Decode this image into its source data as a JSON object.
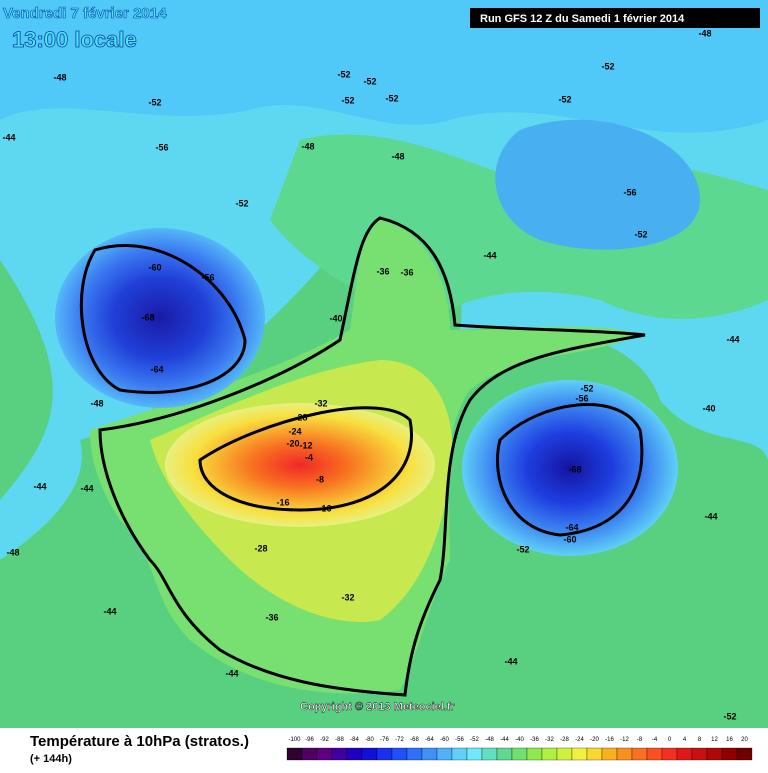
{
  "header": {
    "date": "Vendredi 7 février 2014",
    "time": "13:00 locale",
    "run": "Run GFS 12 Z du Samedi 1 février 2014"
  },
  "copyright": "Copyright © 2013 Meteociel.fr",
  "footer": {
    "title": "Température à 10hPa (stratos.)",
    "lead": "(+ 144h)"
  },
  "legend": {
    "ticks": [
      -100,
      -96,
      -92,
      -88,
      -84,
      -80,
      -76,
      -72,
      -68,
      -64,
      -60,
      -56,
      -52,
      -48,
      -44,
      -40,
      -36,
      -32,
      -28,
      -24,
      -20,
      -16,
      -12,
      -8,
      -4,
      0,
      4,
      8,
      12,
      16,
      20
    ]
  },
  "map": {
    "labels": [
      -48,
      -52,
      -56,
      -52,
      -60,
      -56,
      -68,
      -64,
      -48,
      -44,
      -44,
      -44,
      -48,
      -44,
      -44,
      -40,
      -36,
      -36,
      -32,
      -28,
      -24,
      -20,
      -12,
      -4,
      -8,
      -16,
      -16,
      -28,
      -32,
      -36,
      -68,
      -64,
      -60,
      -56,
      -52,
      -52,
      -44,
      -52,
      -52,
      -56,
      -52,
      -48,
      -44,
      -40,
      -44,
      -44,
      -52,
      -48,
      -48,
      -52,
      -52,
      -52,
      -52
    ]
  }
}
